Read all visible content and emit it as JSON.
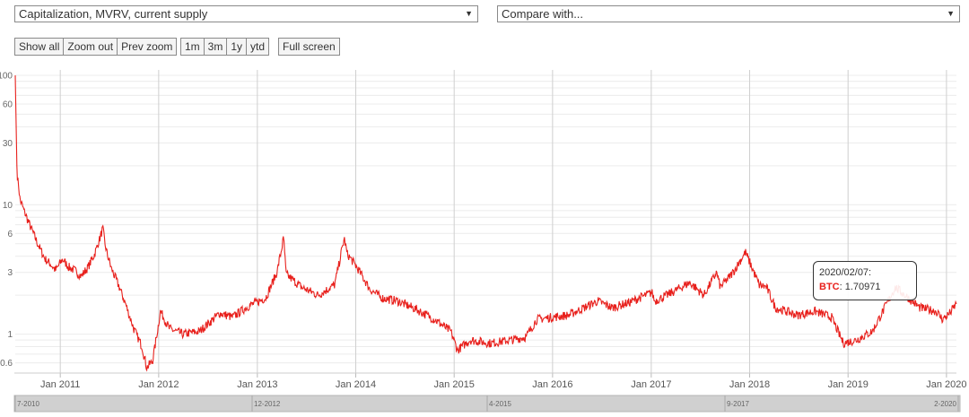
{
  "controls": {
    "metric_select": {
      "value": "Capitalization, MVRV, current supply",
      "arrow": "▼"
    },
    "compare_select": {
      "value": "Compare with...",
      "arrow": "▼"
    },
    "zoom_buttons": [
      "Show all",
      "Zoom out",
      "Prev zoom"
    ],
    "range_buttons": [
      "1m",
      "3m",
      "1y",
      "ytd"
    ],
    "fullscreen_button": "Full screen"
  },
  "tooltip": {
    "date": "2020/02/07:",
    "series": "BTC",
    "sep": ":",
    "value": "1.70971"
  },
  "chart_data": {
    "type": "line",
    "title": "",
    "xlabel": "",
    "ylabel": "",
    "y_scale": "log",
    "ylim": [
      0.5,
      110
    ],
    "y_ticks": [
      0.6,
      1,
      3,
      6,
      10,
      30,
      60,
      100
    ],
    "x_ticks": [
      "Jan 2011",
      "Jan 2012",
      "Jan 2013",
      "Jan 2014",
      "Jan 2015",
      "Jan 2016",
      "Jan 2017",
      "Jan 2018",
      "Jan 2019",
      "Jan 2020"
    ],
    "xlim": [
      "2010-07-18",
      "2020-02-07"
    ],
    "grid": true,
    "series_color": "#e8201c",
    "series": [
      {
        "name": "BTC",
        "x": [
          "2010-07-18",
          "2010-07-25",
          "2010-08-05",
          "2010-08-20",
          "2010-09-10",
          "2010-10-01",
          "2010-10-20",
          "2010-11-06",
          "2010-11-25",
          "2010-12-15",
          "2011-01-10",
          "2011-02-01",
          "2011-02-25",
          "2011-03-20",
          "2011-04-15",
          "2011-05-10",
          "2011-06-08",
          "2011-06-20",
          "2011-07-10",
          "2011-08-05",
          "2011-09-01",
          "2011-10-01",
          "2011-11-01",
          "2011-11-18",
          "2011-12-10",
          "2012-01-08",
          "2012-02-10",
          "2012-04-01",
          "2012-06-01",
          "2012-08-15",
          "2012-10-01",
          "2012-12-01",
          "2013-02-01",
          "2013-03-15",
          "2013-04-09",
          "2013-04-18",
          "2013-06-15",
          "2013-08-15",
          "2013-10-15",
          "2013-11-20",
          "2013-11-30",
          "2014-01-05",
          "2014-02-25",
          "2014-04-10",
          "2014-06-05",
          "2014-08-15",
          "2014-10-20",
          "2014-12-20",
          "2015-01-14",
          "2015-03-01",
          "2015-05-15",
          "2015-08-01",
          "2015-09-25",
          "2015-11-04",
          "2016-01-01",
          "2016-03-01",
          "2016-06-17",
          "2016-08-10",
          "2016-10-10",
          "2017-01-04",
          "2017-01-14",
          "2017-03-01",
          "2017-05-25",
          "2017-07-16",
          "2017-09-01",
          "2017-09-15",
          "2017-11-01",
          "2017-12-17",
          "2018-02-06",
          "2018-03-05",
          "2018-04-07",
          "2018-06-28",
          "2018-09-01",
          "2018-11-01",
          "2018-12-15",
          "2019-02-01",
          "2019-04-02",
          "2019-06-26",
          "2019-08-01",
          "2019-09-25",
          "2019-11-25",
          "2019-12-18",
          "2020-01-14",
          "2020-02-07"
        ],
        "y": [
          100,
          18,
          11,
          9,
          7,
          5.5,
          4.5,
          3.8,
          3.5,
          3.1,
          3.8,
          3.3,
          3.1,
          2.8,
          3.3,
          4.2,
          6.5,
          4.5,
          3.2,
          2.4,
          1.7,
          1.1,
          0.8,
          0.55,
          0.62,
          1.5,
          1.1,
          1.0,
          1.05,
          1.45,
          1.35,
          1.65,
          1.9,
          3.0,
          5.5,
          2.9,
          2.3,
          2.0,
          2.4,
          5.5,
          4.2,
          3.3,
          2.2,
          1.9,
          1.8,
          1.55,
          1.3,
          1.05,
          0.75,
          0.9,
          0.85,
          0.9,
          0.95,
          1.3,
          1.35,
          1.4,
          1.8,
          1.6,
          1.75,
          2.1,
          1.8,
          2.0,
          2.5,
          2.0,
          3.0,
          2.3,
          3.0,
          4.3,
          2.4,
          2.3,
          1.6,
          1.4,
          1.5,
          1.35,
          0.85,
          0.9,
          1.05,
          2.3,
          2.0,
          1.6,
          1.5,
          1.3,
          1.45,
          1.71
        ]
      }
    ]
  },
  "navigator": {
    "labels": [
      "7-2010",
      "12-2012",
      "4-2015",
      "9-2017",
      "2-2020"
    ]
  }
}
